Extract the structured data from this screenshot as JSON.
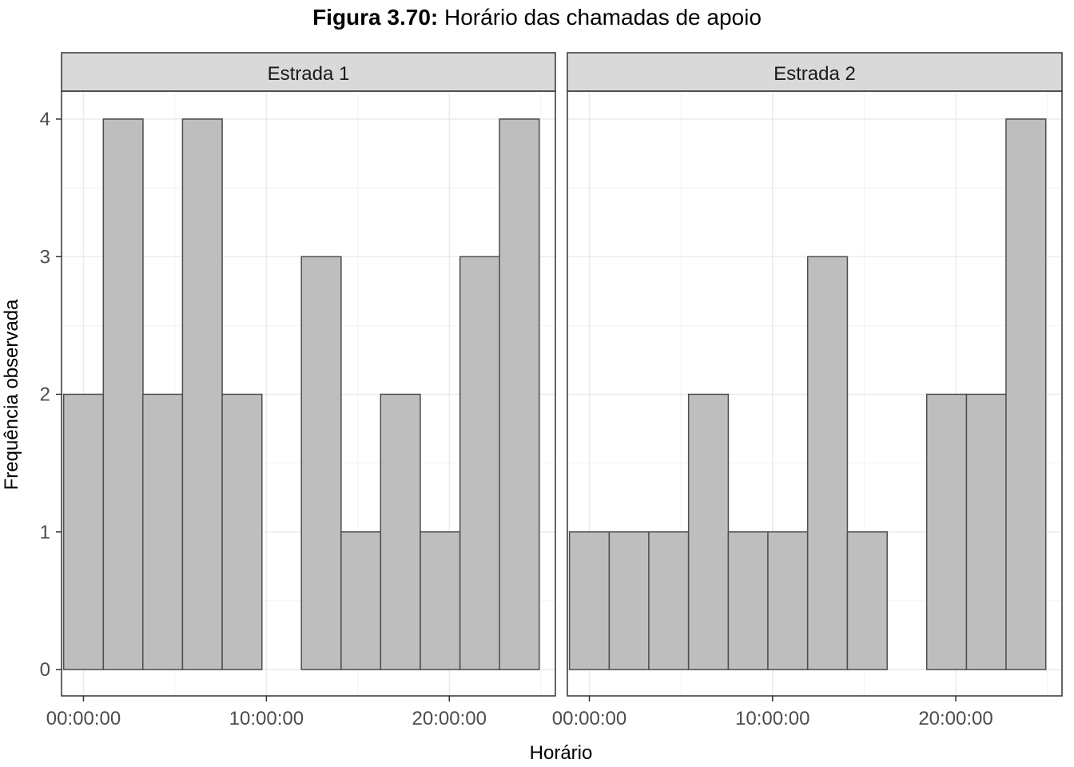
{
  "figure": {
    "title_bold": "Figura 3.70:",
    "title_rest": " Horário das chamadas de apoio"
  },
  "chart_data": {
    "type": "bar",
    "xlabel": "Horário",
    "ylabel": "Frequência observada",
    "x_unit": "hours",
    "bin_width_hours": 2.17,
    "bin_centers_hours": [
      0,
      2.17,
      4.33,
      6.5,
      8.67,
      10.83,
      13,
      15.17,
      17.33,
      19.5,
      21.67,
      23.83
    ],
    "x_ticks": [
      {
        "value": 0,
        "label": "00:00:00"
      },
      {
        "value": 10,
        "label": "10:00:00"
      },
      {
        "value": 20,
        "label": "20:00:00"
      }
    ],
    "ylim": [
      0,
      4
    ],
    "y_ticks": [
      0,
      1,
      2,
      3,
      4
    ],
    "grid": true,
    "colors": {
      "bar_fill": "#bebebe",
      "bar_stroke": "#4d4d4d",
      "strip_fill": "#d9d9d9",
      "panel_border": "#333333",
      "grid": "#ebebeb"
    },
    "panels": [
      {
        "name": "Estrada 1",
        "values": [
          2,
          4,
          2,
          4,
          2,
          0,
          3,
          1,
          2,
          1,
          3,
          4
        ]
      },
      {
        "name": "Estrada 2",
        "values": [
          1,
          1,
          1,
          2,
          1,
          1,
          3,
          1,
          0,
          2,
          2,
          4
        ]
      }
    ]
  }
}
